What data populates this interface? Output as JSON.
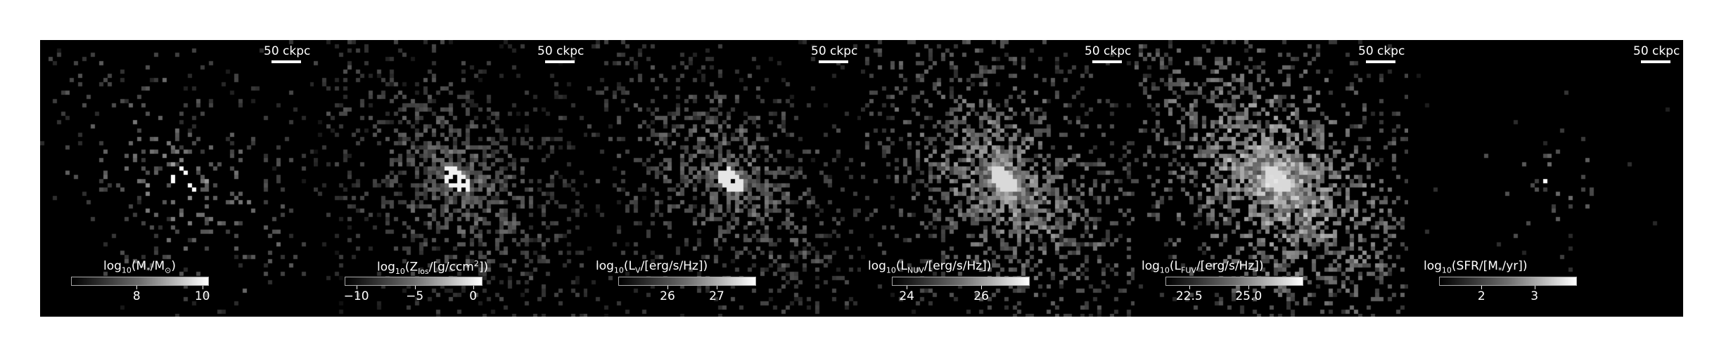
{
  "figure": {
    "scale_bar_label": "50 ckpc",
    "panels": [
      {
        "id": "stellar-mass",
        "cbar_label_parts": [
          "log",
          "10",
          "(M",
          "*",
          "/M",
          "⊙",
          ")"
        ],
        "cbar_range": [
          6,
          10.2
        ],
        "ticks": [
          {
            "value": 8,
            "label": "8"
          },
          {
            "value": 10,
            "label": "10"
          }
        ],
        "density": 0.1,
        "brightness": 0.55,
        "core": 1.0
      },
      {
        "id": "metallicity",
        "cbar_label_parts": [
          "log",
          "10",
          "(Z",
          "los",
          "/[g/ccm",
          "2",
          "])"
        ],
        "cbar_range": [
          -11,
          0.8
        ],
        "ticks": [
          {
            "value": -10,
            "label": "−10"
          },
          {
            "value": -5,
            "label": "−5"
          },
          {
            "value": 0,
            "label": "0"
          }
        ],
        "density": 0.3,
        "brightness": 0.45,
        "core": 0.95
      },
      {
        "id": "v-band",
        "cbar_label_parts": [
          "log",
          "10",
          "(L",
          "V",
          "/[erg/s/Hz])"
        ],
        "cbar_range": [
          25,
          27.8
        ],
        "ticks": [
          {
            "value": 26,
            "label": "26"
          },
          {
            "value": 27,
            "label": "27"
          }
        ],
        "density": 0.28,
        "brightness": 0.5,
        "core": 0.9
      },
      {
        "id": "nuv",
        "cbar_label_parts": [
          "log",
          "10",
          "(L",
          "NUV",
          "/[erg/s/Hz])"
        ],
        "cbar_range": [
          23.6,
          27.3
        ],
        "ticks": [
          {
            "value": 24,
            "label": "24"
          },
          {
            "value": 26,
            "label": "26"
          }
        ],
        "density": 0.38,
        "brightness": 0.7,
        "core": 0.85
      },
      {
        "id": "fuv",
        "cbar_label_parts": [
          "log",
          "10",
          "(L",
          "FUV",
          "/[erg/s/Hz])"
        ],
        "cbar_range": [
          21.5,
          27.3
        ],
        "ticks": [
          {
            "value": 22.5,
            "label": "22.5"
          },
          {
            "value": 25.0,
            "label": "25.0"
          }
        ],
        "density": 0.45,
        "brightness": 0.85,
        "core": 0.85
      },
      {
        "id": "sfr",
        "cbar_label_parts": [
          "log",
          "10",
          "(SFR/[M",
          "*",
          "/yr])"
        ],
        "cbar_range": [
          1.2,
          3.8
        ],
        "ticks": [
          {
            "value": 2,
            "label": "2"
          },
          {
            "value": 3,
            "label": "3"
          }
        ],
        "density": 0.02,
        "brightness": 0.4,
        "core": 1.0
      }
    ]
  }
}
